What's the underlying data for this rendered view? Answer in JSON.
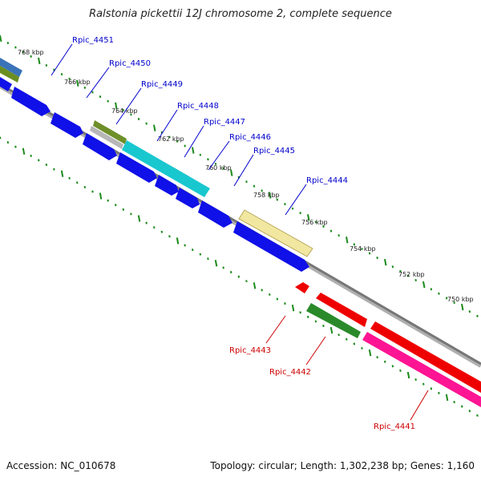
{
  "title": "Ralstonia pickettii 12J chromosome 2, complete sequence",
  "footer": {
    "accession": "Accession: NC_010678",
    "summary": "Topology: circular; Length: 1,302,238 bp; Genes: 1,160"
  },
  "kbp_labels": [
    "768 kbp",
    "766 kbp",
    "764 kbp",
    "762 kbp",
    "760 kbp",
    "758 kbp",
    "756 kbp",
    "754 kbp",
    "752 kbp",
    "750 kbp"
  ],
  "genes_forward": [
    "Rpic_4451",
    "Rpic_4450",
    "Rpic_4449",
    "Rpic_4448",
    "Rpic_4447",
    "Rpic_4446",
    "Rpic_4445",
    "Rpic_4444"
  ],
  "genes_reverse": [
    "Rpic_4443",
    "Rpic_4442",
    "Rpic_4441"
  ],
  "colors": {
    "forward_label": "#0000cc",
    "reverse_label": "#cc0000",
    "blue_gene": "#1010e8",
    "red_gene": "#ee0000",
    "green_gene": "#2a8a2a",
    "magenta_gene": "#ff1493",
    "cyan_feature": "#19c7cf",
    "tick_green": "#1a8a1a",
    "backbone": "#8a8a8a"
  }
}
